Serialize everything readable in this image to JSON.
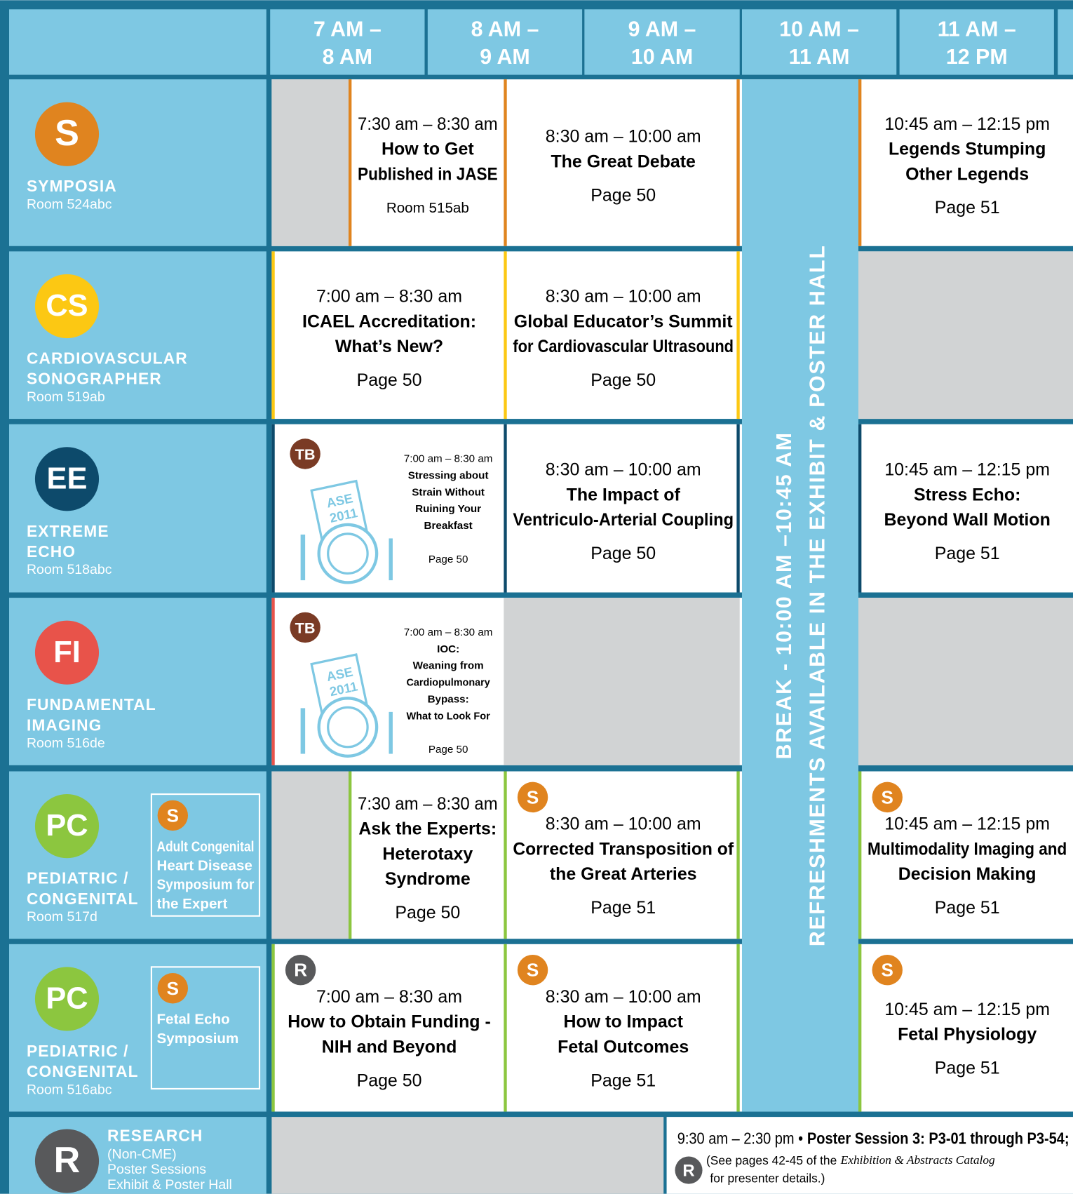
{
  "header": {
    "times": [
      [
        "7 AM –",
        "8 AM"
      ],
      [
        "8 AM –",
        "9 AM"
      ],
      [
        "9 AM –",
        "10 AM"
      ],
      [
        "10 AM –",
        "11 AM"
      ],
      [
        "11 AM –",
        "12 PM"
      ]
    ]
  },
  "break": {
    "lines": [
      "BREAK - 10:00 AM –10:45 AM",
      "REFRESHMENTS AVAILABLE IN THE EXHIBIT & POSTER HALL"
    ]
  },
  "rows": [
    {
      "badge": "S",
      "name": [
        "SYMPOSIA"
      ],
      "room": "Room 524abc",
      "sessions": [
        {
          "time": "7:30 am – 8:30 am",
          "title": [
            "How to Get",
            "Published in JASE"
          ],
          "note": "Room 515ab"
        },
        {
          "time": "8:30 am – 10:00 am",
          "title": [
            "The Great Debate"
          ],
          "note": "Page 50"
        },
        {
          "time": "10:45 am – 12:15 pm",
          "title": [
            "Legends Stumping",
            "Other Legends"
          ],
          "note": "Page 51"
        }
      ]
    },
    {
      "badge": "CS",
      "name": [
        "CARDIOVASCULAR",
        "SONOGRAPHER"
      ],
      "room": "Room 519ab",
      "sessions": [
        {
          "time": "7:00 am – 8:30 am",
          "title": [
            "ICAEL Accreditation:",
            "What’s New?"
          ],
          "note": "Page 50"
        },
        {
          "time": "8:30 am – 10:00 am",
          "title": [
            "Global Educator’s Summit",
            "for Cardiovascular Ultrasound"
          ],
          "note": "Page 50"
        }
      ]
    },
    {
      "badge": "EE",
      "name": [
        "EXTREME",
        "ECHO"
      ],
      "room": "Room 518abc",
      "sessions": [
        {
          "tag": "TB",
          "icon": [
            "ASE",
            "2011"
          ],
          "time": "7:00 am – 8:30 am",
          "title": [
            "Stressing about",
            "Strain Without",
            "Ruining Your",
            "Breakfast"
          ],
          "note": "Page 50"
        },
        {
          "time": "8:30 am – 10:00 am",
          "title": [
            "The Impact of",
            "Ventriculo-Arterial Coupling"
          ],
          "note": "Page 50"
        },
        {
          "time": "10:45 am – 12:15 pm",
          "title": [
            "Stress Echo:",
            "Beyond Wall Motion"
          ],
          "note": "Page 51"
        }
      ]
    },
    {
      "badge": "FI",
      "name": [
        "FUNDAMENTAL",
        "IMAGING"
      ],
      "room": "Room 516de",
      "sessions": [
        {
          "tag": "TB",
          "icon": [
            "ASE",
            "2011"
          ],
          "time": "7:00 am – 8:30 am",
          "title": [
            "IOC:",
            "Weaning from",
            "Cardiopulmonary",
            "Bypass:",
            "What to Look For"
          ],
          "note": "Page 50"
        }
      ]
    },
    {
      "badge": "PC",
      "name": [
        "PEDIATRIC /",
        "CONGENITAL"
      ],
      "room": "Room 517d",
      "side": {
        "badge": "S",
        "lines": [
          "Adult Congenital",
          "Heart Disease",
          "Symposium for",
          "the Expert"
        ]
      },
      "sessions": [
        {
          "time": "7:30 am – 8:30 am",
          "title": [
            "Ask the Experts:",
            "Heterotaxy",
            "Syndrome"
          ],
          "note": "Page 50"
        },
        {
          "tag": "S",
          "time": "8:30 am – 10:00 am",
          "title": [
            "Corrected Transposition of",
            "the Great Arteries"
          ],
          "note": "Page 51"
        },
        {
          "tag": "S",
          "time": "10:45 am – 12:15 pm",
          "title": [
            "Multimodality Imaging and",
            "Decision Making"
          ],
          "note": "Page 51"
        }
      ]
    },
    {
      "badge": "PC",
      "name": [
        "PEDIATRIC /",
        "CONGENITAL"
      ],
      "room": "Room 516abc",
      "side": {
        "badge": "S",
        "lines": [
          "Fetal Echo",
          "Symposium"
        ]
      },
      "sessions": [
        {
          "tag": "R",
          "time": "7:00 am – 8:30 am",
          "title": [
            "How to Obtain Funding -",
            "NIH and Beyond"
          ],
          "note": "Page 50"
        },
        {
          "tag": "S",
          "time": "8:30 am – 10:00 am",
          "title": [
            "How to Impact",
            "Fetal Outcomes"
          ],
          "note": "Page 51"
        },
        {
          "tag": "S",
          "time": "10:45 am – 12:15 pm",
          "title": [
            "Fetal Physiology"
          ],
          "note": "Page 51"
        }
      ]
    }
  ],
  "research": {
    "badge": "R",
    "name": "RESEARCH",
    "lines": [
      "(Non-CME)",
      "Poster Sessions",
      "Exhibit & Poster Hall"
    ],
    "time": "9:30 am – 2:30 pm •",
    "title": "Poster Session 3: P3-01 through P3-54;",
    "tag": "R",
    "note_start": "(See pages 42-45 of the",
    "note_italic": "Exhibition & Abstracts Catalog",
    "note_end": "for presenter details.)"
  }
}
